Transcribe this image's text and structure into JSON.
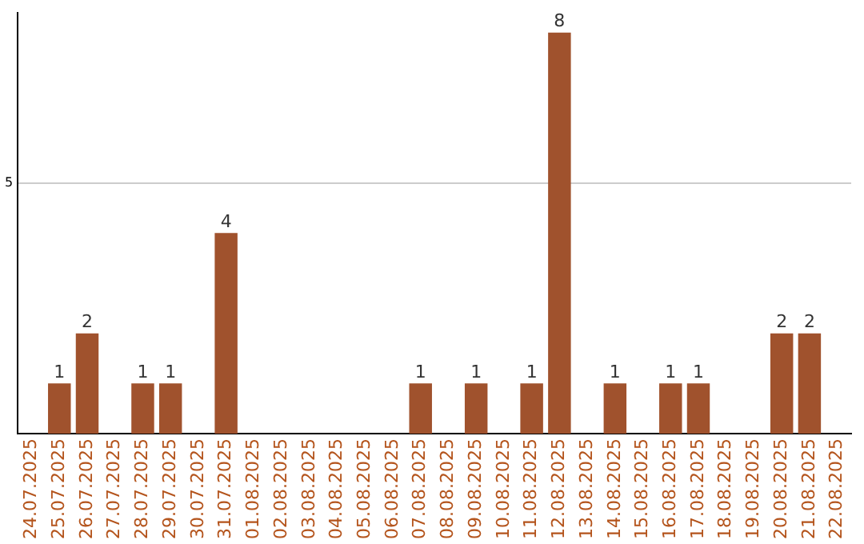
{
  "chart_data": {
    "type": "bar",
    "categories": [
      "24.07.2025",
      "25.07.2025",
      "26.07.2025",
      "27.07.2025",
      "28.07.2025",
      "29.07.2025",
      "30.07.2025",
      "31.07.2025",
      "01.08.2025",
      "02.08.2025",
      "03.08.2025",
      "04.08.2025",
      "05.08.2025",
      "06.08.2025",
      "07.08.2025",
      "08.08.2025",
      "09.08.2025",
      "10.08.2025",
      "11.08.2025",
      "12.08.2025",
      "13.08.2025",
      "14.08.2025",
      "15.08.2025",
      "16.08.2025",
      "17.08.2025",
      "18.08.2025",
      "19.08.2025",
      "20.08.2025",
      "21.08.2025",
      "22.08.2025"
    ],
    "values": [
      0,
      1,
      2,
      0,
      1,
      1,
      0,
      4,
      0,
      0,
      0,
      0,
      0,
      0,
      1,
      0,
      1,
      0,
      1,
      8,
      0,
      1,
      0,
      1,
      1,
      0,
      0,
      2,
      2,
      0
    ],
    "value_labels": [
      null,
      "1",
      "2",
      null,
      "1",
      "1",
      null,
      "4",
      null,
      null,
      null,
      null,
      null,
      null,
      "1",
      null,
      "1",
      null,
      "1",
      "8",
      null,
      "1",
      null,
      "1",
      "1",
      null,
      null,
      "2",
      "2",
      null
    ],
    "color": "#a0522d",
    "ylim": [
      0,
      8.4
    ],
    "yticks": [
      5
    ],
    "grid": "y",
    "legend": false
  }
}
